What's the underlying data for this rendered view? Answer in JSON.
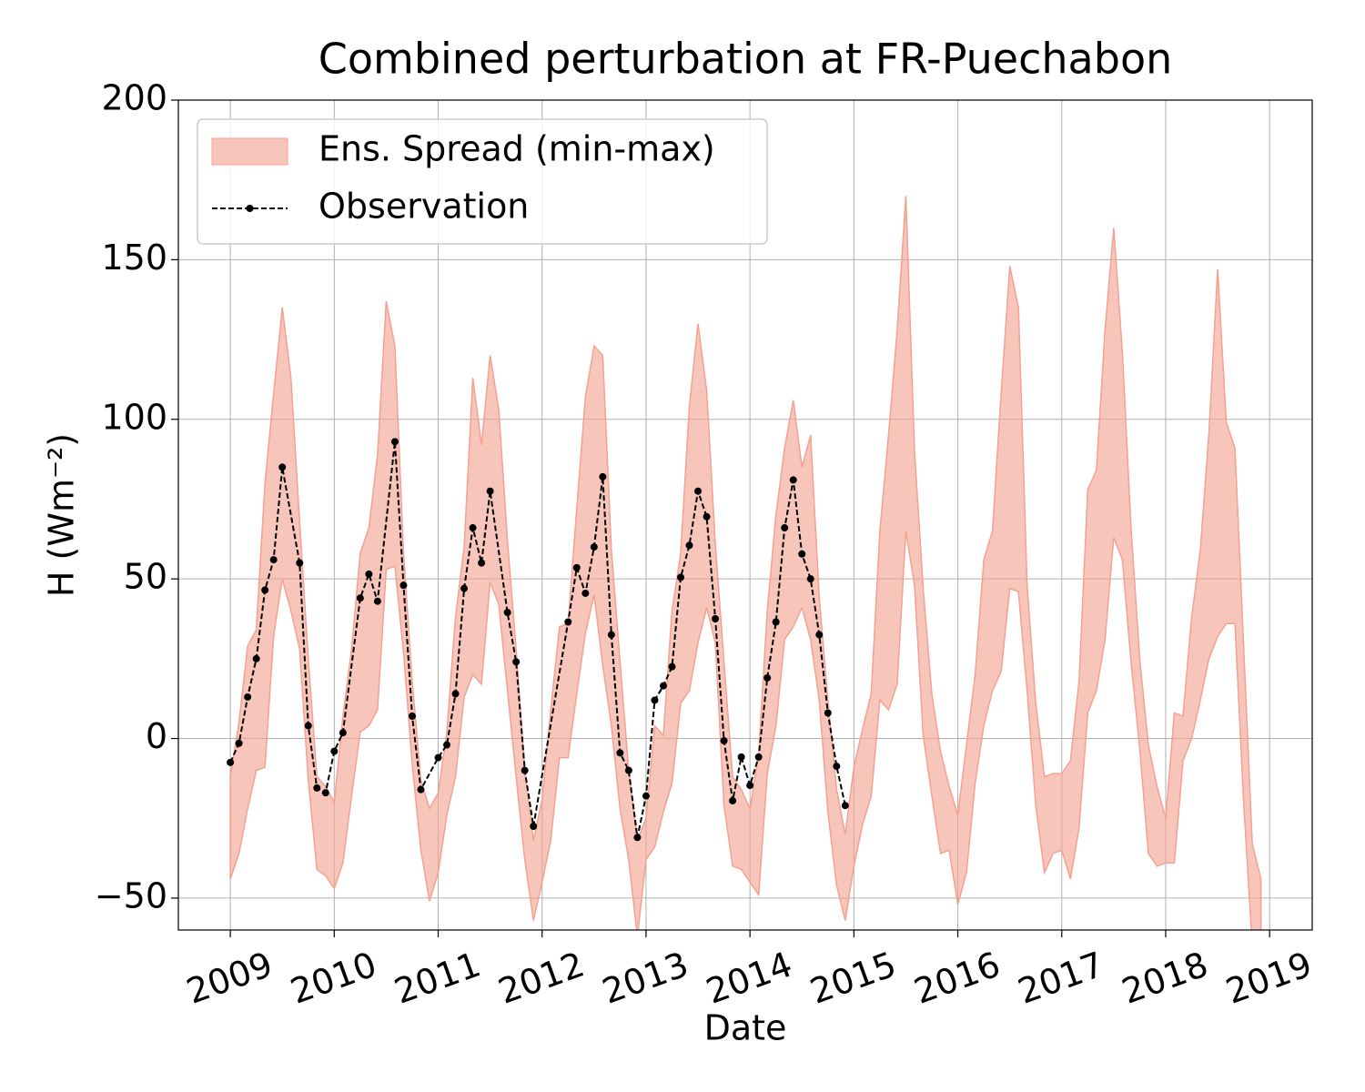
{
  "chart_data": {
    "type": "line",
    "title": "Combined perturbation at FR-Puechabon",
    "x_label": "Date",
    "y_label": "H  (Wm⁻²)",
    "xlim": [
      2008.5,
      2019.41
    ],
    "xticks": [
      2009,
      2010,
      2011,
      2012,
      2013,
      2014,
      2015,
      2016,
      2017,
      2018,
      2019
    ],
    "ylim": [
      -60,
      200
    ],
    "yticks": [
      {
        "value": -50,
        "label": "−50"
      },
      0,
      50,
      100,
      150,
      200
    ],
    "grid": true,
    "legend": "upper left",
    "x": [
      "2009-01",
      "2009-02",
      "2009-03",
      "2009-04",
      "2009-05",
      "2009-06",
      "2009-07",
      "2009-08",
      "2009-09",
      "2009-10",
      "2009-11",
      "2009-12",
      "2010-01",
      "2010-02",
      "2010-03",
      "2010-04",
      "2010-05",
      "2010-06",
      "2010-07",
      "2010-08",
      "2010-09",
      "2010-10",
      "2010-11",
      "2010-12",
      "2011-01",
      "2011-02",
      "2011-03",
      "2011-04",
      "2011-05",
      "2011-06",
      "2011-07",
      "2011-08",
      "2011-09",
      "2011-10",
      "2011-11",
      "2011-12",
      "2012-01",
      "2012-02",
      "2012-03",
      "2012-04",
      "2012-05",
      "2012-06",
      "2012-07",
      "2012-08",
      "2012-09",
      "2012-10",
      "2012-11",
      "2012-12",
      "2013-01",
      "2013-02",
      "2013-03",
      "2013-04",
      "2013-05",
      "2013-06",
      "2013-07",
      "2013-08",
      "2013-09",
      "2013-10",
      "2013-11",
      "2013-12",
      "2014-01",
      "2014-02",
      "2014-03",
      "2014-04",
      "2014-05",
      "2014-06",
      "2014-07",
      "2014-08",
      "2014-09",
      "2014-10",
      "2014-11",
      "2014-12",
      "2015-01",
      "2015-02",
      "2015-03",
      "2015-04",
      "2015-05",
      "2015-06",
      "2015-07",
      "2015-08",
      "2015-09",
      "2015-10",
      "2015-11",
      "2015-12",
      "2016-01",
      "2016-02",
      "2016-03",
      "2016-04",
      "2016-05",
      "2016-06",
      "2016-07",
      "2016-08",
      "2016-09",
      "2016-10",
      "2016-11",
      "2016-12",
      "2017-01",
      "2017-02",
      "2017-03",
      "2017-04",
      "2017-05",
      "2017-06",
      "2017-07",
      "2017-08",
      "2017-09",
      "2017-10",
      "2017-11",
      "2017-12",
      "2018-01",
      "2018-02",
      "2018-03",
      "2018-04",
      "2018-05",
      "2018-06",
      "2018-07",
      "2018-08",
      "2018-09",
      "2018-10",
      "2018-11",
      "2018-12"
    ],
    "series": [
      {
        "name": "Ens. Spread (min-max)",
        "color": "#f4a191",
        "kind": "band",
        "upper": [
          -12,
          5,
          29,
          34,
          80,
          108,
          135,
          113,
          68,
          25,
          -12,
          -15,
          -20,
          7,
          28,
          58,
          66,
          89,
          137,
          123,
          58,
          18,
          -13,
          -22,
          -17,
          2,
          38,
          60,
          113,
          92,
          120,
          103,
          62,
          28,
          -10,
          -32,
          -19,
          9,
          35,
          36,
          72,
          107,
          123,
          120,
          59,
          24,
          -10,
          -32,
          -25,
          4,
          1,
          40,
          58,
          104,
          130,
          109,
          61,
          24,
          -12,
          -16,
          -22,
          -5,
          40,
          70,
          91,
          106,
          85,
          95,
          44,
          12,
          -16,
          -30,
          -9,
          3,
          14,
          65,
          95,
          128,
          170,
          90,
          47,
          14,
          -4,
          -15,
          -24,
          -2,
          20,
          56,
          65,
          108,
          148,
          135,
          48,
          11,
          -12,
          -11,
          -11,
          -7,
          18,
          78,
          84,
          128,
          160,
          121,
          66,
          25,
          -2,
          -15,
          -25,
          8,
          7,
          38,
          59,
          96,
          147,
          99,
          91,
          29,
          -33,
          -44
        ],
        "lower": [
          -44,
          -36,
          -22,
          -10,
          -9,
          32,
          50,
          40,
          28,
          -13,
          -41,
          -43,
          -47,
          -39,
          -18,
          2,
          4,
          9,
          53,
          54,
          27,
          -8,
          -35,
          -51,
          -42,
          -24,
          -12,
          13,
          20,
          17,
          49,
          42,
          15,
          -12,
          -38,
          -57,
          -45,
          -32,
          -6,
          -6,
          14,
          33,
          45,
          23,
          4,
          -22,
          -38,
          -62,
          -38,
          -34,
          -23,
          -14,
          11,
          15,
          30,
          41,
          30,
          -21,
          -40,
          -41,
          -45,
          -49,
          -11,
          4,
          31,
          35,
          41,
          31,
          12,
          -23,
          -46,
          -57,
          -40,
          -27,
          -18,
          12,
          9,
          17,
          65,
          48,
          1,
          -18,
          -36,
          -35,
          -52,
          -42,
          -14,
          4,
          15,
          21,
          47,
          46,
          15,
          -21,
          -42,
          -36,
          -35,
          -44,
          -28,
          8,
          15,
          31,
          63,
          56,
          24,
          -3,
          -36,
          -40,
          -39,
          -39,
          -7,
          0,
          12,
          25,
          32,
          36,
          36,
          -20,
          -65,
          -70
        ]
      },
      {
        "name": "Observation",
        "color": "#000000",
        "kind": "line",
        "x": [
          "2009-01",
          "2009-02",
          "2009-03",
          "2009-04",
          "2009-05",
          "2009-06",
          "2009-07",
          "2009-09",
          "2009-10",
          "2009-11",
          "2009-12",
          "2010-01",
          "2010-02",
          "2010-04",
          "2010-05",
          "2010-06",
          "2010-08",
          "2010-09",
          "2010-10",
          "2010-11",
          "2011-01",
          "2011-02",
          "2011-03",
          "2011-04",
          "2011-05",
          "2011-06",
          "2011-07",
          "2011-09",
          "2011-10",
          "2011-11",
          "2011-12",
          "2012-04",
          "2012-05",
          "2012-06",
          "2012-07",
          "2012-08",
          "2012-09",
          "2012-10",
          "2012-11",
          "2012-12",
          "2013-01",
          "2013-02",
          "2013-03",
          "2013-04",
          "2013-05",
          "2013-06",
          "2013-07",
          "2013-08",
          "2013-09",
          "2013-10",
          "2013-11",
          "2013-12",
          "2014-01",
          "2014-02",
          "2014-03",
          "2014-04",
          "2014-05",
          "2014-06",
          "2014-07",
          "2014-08",
          "2014-09",
          "2014-10",
          "2014-11",
          "2014-12"
        ],
        "values": [
          -7.5,
          -1.5,
          13,
          25,
          46.5,
          56,
          85,
          55,
          4,
          -15.5,
          -17,
          -4,
          1.8,
          44,
          51.5,
          43,
          93,
          48,
          7,
          -16,
          -6,
          -2,
          14,
          47,
          66,
          55,
          77.5,
          39.5,
          24,
          -10,
          -27.5,
          36.5,
          53.5,
          45.5,
          60,
          82,
          32.5,
          -4.5,
          -10,
          -31,
          -18,
          12,
          16.5,
          22.5,
          50.5,
          60.5,
          77.5,
          69.5,
          37.5,
          -0.7,
          -19.5,
          -5.8,
          -14.7,
          -5.8,
          19,
          36.5,
          66,
          81,
          57.8,
          50,
          32.5,
          8,
          -8.7,
          -21
        ]
      }
    ]
  }
}
